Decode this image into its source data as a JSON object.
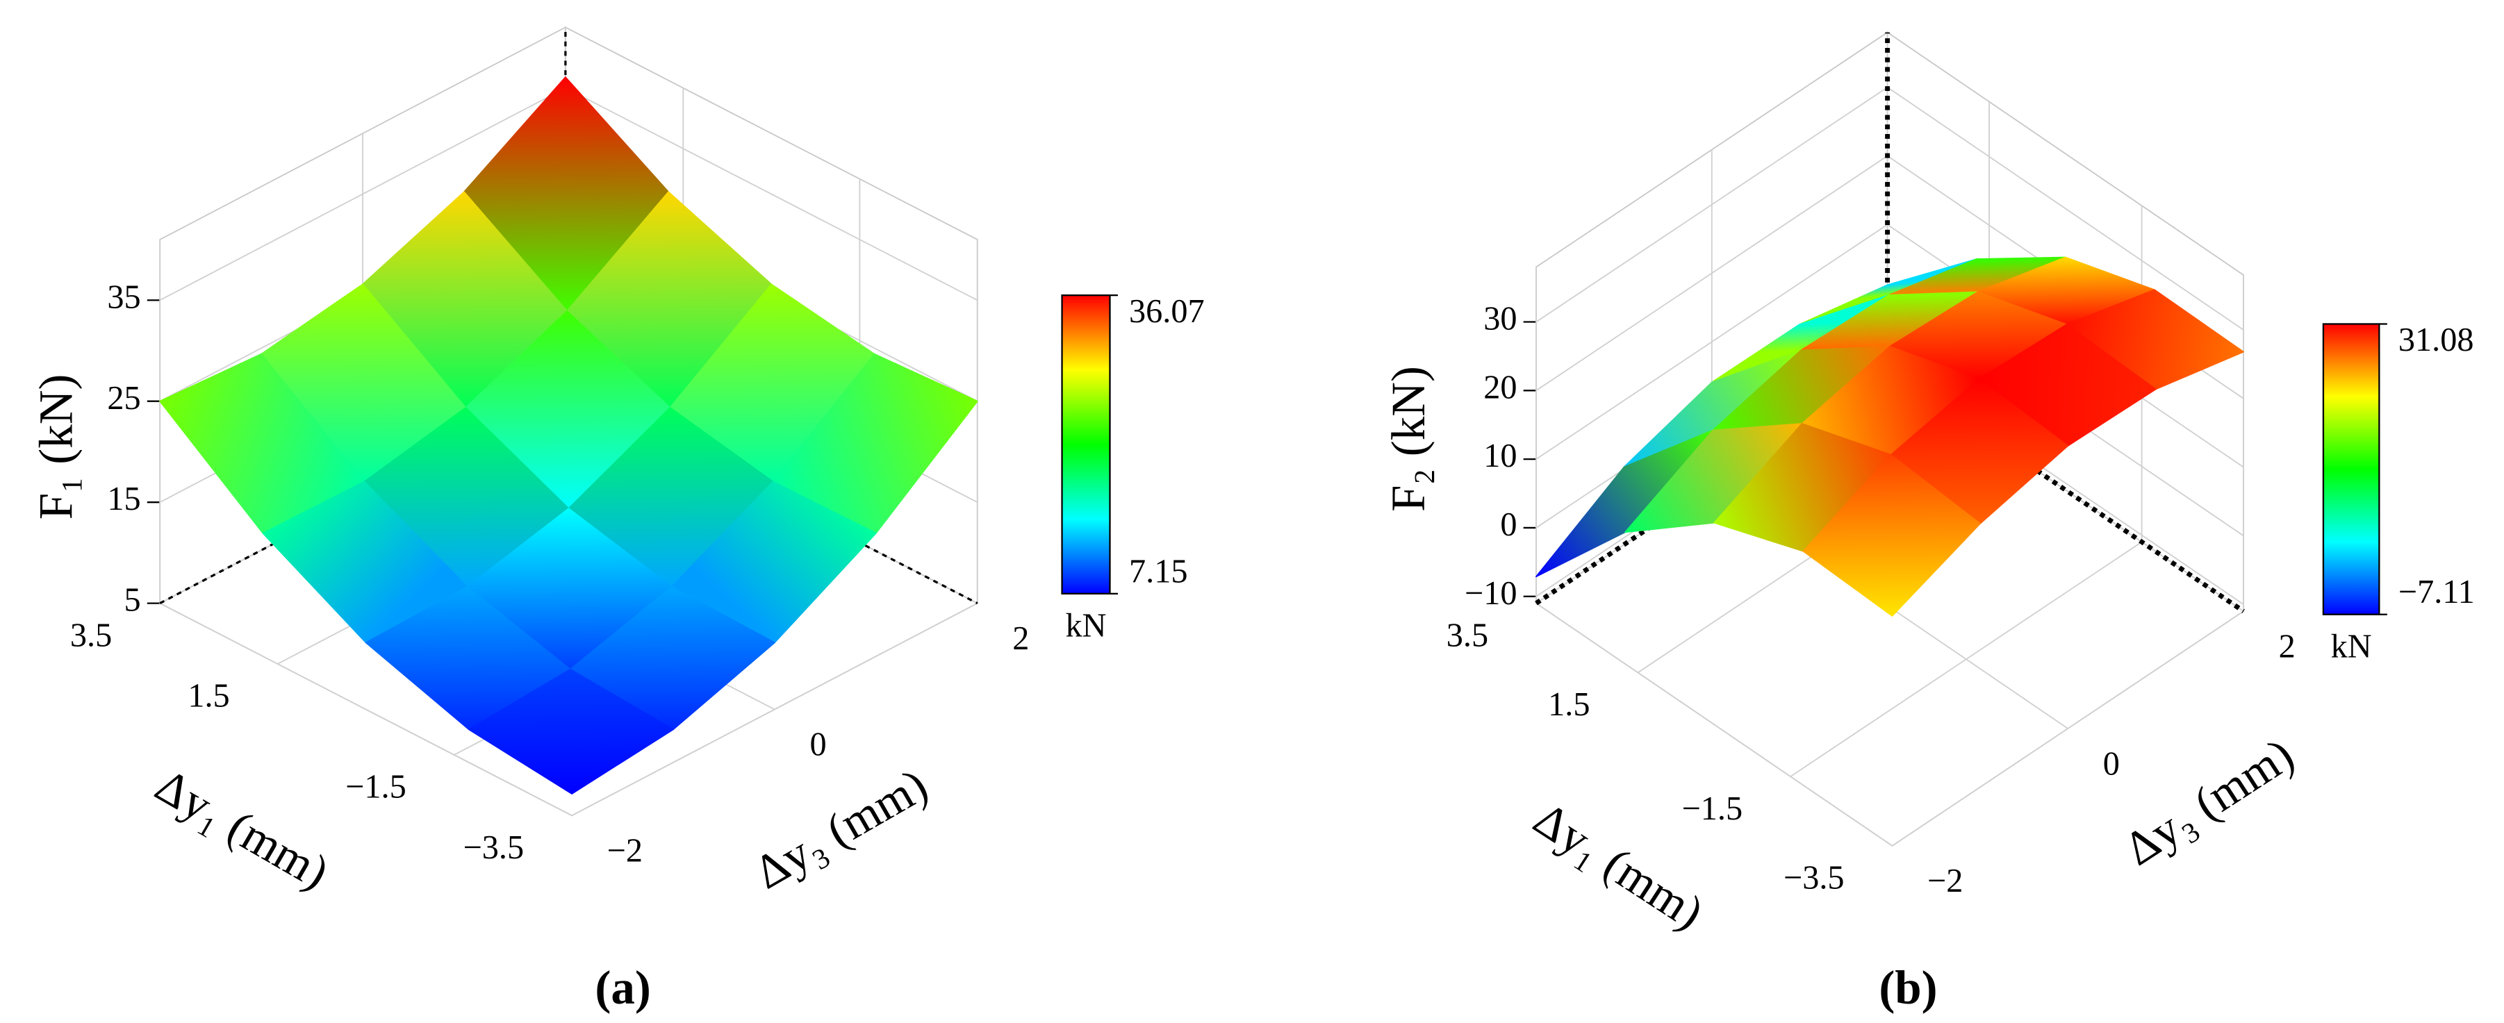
{
  "chart_data": [
    {
      "type": "surface",
      "label": "(a)",
      "zlabel": "F₁ (kN)",
      "xlabel": "Δy₁ (mm)",
      "ylabel": "Δy₃ (mm)",
      "x": [
        -3.5,
        -1.75,
        0,
        1.75,
        3.5
      ],
      "y": [
        -2,
        -1,
        0,
        1,
        2
      ],
      "z": [
        [
          7.15,
          8.27,
          11.61,
          17.19,
          25.0
        ],
        [
          8.27,
          8.96,
          11.88,
          17.04,
          24.42
        ],
        [
          11.61,
          11.88,
          14.38,
          19.11,
          26.07
        ],
        [
          17.19,
          17.04,
          19.11,
          23.42,
          29.96
        ],
        [
          25.0,
          24.42,
          26.07,
          29.96,
          36.07
        ]
      ],
      "xlim": [
        -3.5,
        3.5
      ],
      "ylim": [
        -2,
        2
      ],
      "zlim": [
        5,
        41
      ],
      "xticks": [
        3.5,
        1.5,
        {
          "value": -1.5,
          "label": "−1.5"
        },
        {
          "value": -3.5,
          "label": "−3.5"
        }
      ],
      "yticks": [
        {
          "value": -2,
          "label": "−2"
        },
        0,
        2
      ],
      "zticks": [
        5,
        15,
        25,
        35
      ],
      "colormap": [
        "#0000ff",
        "#00ffff",
        "#00ff00",
        "#ffff00",
        "#ff0000"
      ],
      "colorbar": {
        "clim": [
          7.15,
          36.07
        ],
        "ticks": [
          36.07,
          7.15
        ],
        "label": "kN"
      },
      "grid": true
    },
    {
      "type": "surface",
      "label": "(b)",
      "zlabel": "F₂ (kN)",
      "xlabel": "Δy₁ (mm)",
      "ylabel": "Δy₃ (mm)",
      "x": [
        -3.5,
        -1.75,
        0,
        1.75,
        3.5
      ],
      "y": [
        -2,
        -1,
        0,
        1,
        2
      ],
      "z": [
        [
          22.5,
          27.4,
          30.2,
          29.9,
          26.8
        ],
        [
          23.1,
          28.6,
          31.08,
          30.5,
          27.0
        ],
        [
          18.4,
          24.3,
          27.0,
          26.4,
          22.9
        ],
        [
          8.2,
          14.5,
          17.6,
          17.1,
          13.8
        ],
        [
          -7.11,
          0.3,
          4.1,
          4.0,
          1.2
        ]
      ],
      "xlim": [
        -3.5,
        3.5
      ],
      "ylim": [
        -2,
        2
      ],
      "zlim": [
        -11,
        38
      ],
      "xticks": [
        3.5,
        1.5,
        {
          "value": -1.5,
          "label": "−1.5"
        },
        {
          "value": -3.5,
          "label": "−3.5"
        }
      ],
      "yticks": [
        {
          "value": -2,
          "label": "−2"
        },
        0,
        2
      ],
      "zticks": [
        {
          "value": -10,
          "label": "−10"
        },
        0,
        10,
        20,
        30
      ],
      "colormap": [
        "#0000ff",
        "#00ffff",
        "#00ff00",
        "#ffff00",
        "#ff0000"
      ],
      "colorbar": {
        "clim": [
          -7.11,
          31.08
        ],
        "ticks": [
          31.08,
          {
            "value": -7.11,
            "label": "−7.11"
          }
        ],
        "label": "kN"
      },
      "grid": true
    }
  ]
}
